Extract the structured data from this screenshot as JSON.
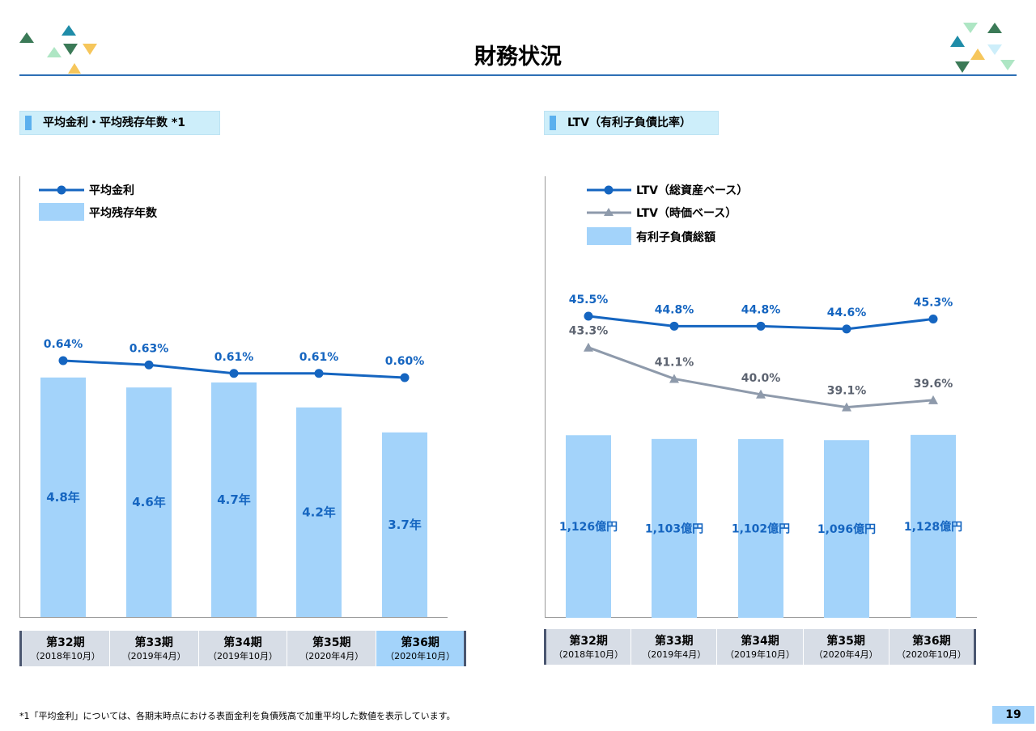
{
  "page": {
    "title": "財務状況",
    "footnote": "*1「平均金利」については、各期末時点における表面金利を負債残高で加重平均した数値を表示しています。",
    "page_number": "19"
  },
  "left_section": {
    "title": "平均金利・平均残存年数 *1"
  },
  "right_section": {
    "title": "LTV（有利子負債比率）"
  },
  "categories": [
    {
      "label": "第32期",
      "sub": "（2018年10月）"
    },
    {
      "label": "第33期",
      "sub": "（2019年4月）"
    },
    {
      "label": "第34期",
      "sub": "（2019年10月）"
    },
    {
      "label": "第35期",
      "sub": "（2020年4月）"
    },
    {
      "label": "第36期",
      "sub": "（2020年10月）"
    }
  ],
  "colors": {
    "bar": "#a3d3fa",
    "line_primary": "#1565c0",
    "line_secondary": "#8e9aab",
    "value_label": "#1565c0",
    "value_label_secondary": "#5c6370",
    "accent_rule": "#2d6fb5"
  },
  "chart_data": [
    {
      "type": "bar",
      "categories": [
        "第32期",
        "第33期",
        "第34期",
        "第35期",
        "第36期"
      ],
      "series": [
        {
          "name": "平均金利",
          "kind": "line",
          "values": [
            0.64,
            0.63,
            0.61,
            0.61,
            0.6
          ],
          "labels": [
            "0.64%",
            "0.63%",
            "0.61%",
            "0.61%",
            "0.60%"
          ]
        },
        {
          "name": "平均残存年数",
          "kind": "bar",
          "values": [
            4.8,
            4.6,
            4.7,
            4.2,
            3.7
          ],
          "labels": [
            "4.8年",
            "4.6年",
            "4.7年",
            "4.2年",
            "3.7年"
          ]
        }
      ],
      "legend": "top-left",
      "grid": false
    },
    {
      "type": "bar",
      "categories": [
        "第32期",
        "第33期",
        "第34期",
        "第35期",
        "第36期"
      ],
      "series": [
        {
          "name": "LTV（総資産ベース）",
          "kind": "line",
          "values": [
            45.5,
            44.8,
            44.8,
            44.6,
            45.3
          ],
          "labels": [
            "45.5%",
            "44.8%",
            "44.8%",
            "44.6%",
            "45.3%"
          ]
        },
        {
          "name": "LTV（時価ベース）",
          "kind": "line",
          "values": [
            43.3,
            41.1,
            40.0,
            39.1,
            39.6
          ],
          "labels": [
            "43.3%",
            "41.1%",
            "40.0%",
            "39.1%",
            "39.6%"
          ]
        },
        {
          "name": "有利子負債総額",
          "kind": "bar",
          "values": [
            1126,
            1103,
            1102,
            1096,
            1128
          ],
          "labels": [
            "1,126億円",
            "1,103億円",
            "1,102億円",
            "1,096億円",
            "1,128億円"
          ]
        }
      ],
      "legend": "top-left",
      "grid": false
    }
  ]
}
